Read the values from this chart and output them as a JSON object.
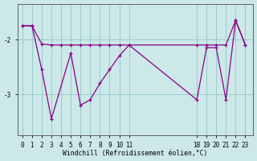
{
  "xlabel": "Windchill (Refroidissement éolien,°C)",
  "bg_color": "#cce8e8",
  "line_color": "#880088",
  "grid_color": "#99cccc",
  "yticks": [
    -2,
    -3
  ],
  "xticks": [
    0,
    1,
    2,
    3,
    4,
    5,
    6,
    7,
    8,
    9,
    10,
    11,
    18,
    19,
    20,
    21,
    22,
    23
  ],
  "xlim": [
    -0.5,
    23.8
  ],
  "ylim": [
    -3.75,
    -1.35
  ],
  "line_a_x": [
    0,
    1,
    2,
    3,
    5,
    6,
    7,
    8,
    9,
    10,
    11,
    18,
    19,
    20,
    21,
    22,
    23
  ],
  "line_a_y": [
    -1.75,
    -1.75,
    -2.55,
    -3.45,
    -2.25,
    -3.2,
    -3.1,
    -2.8,
    -2.55,
    -2.3,
    -2.1,
    -3.1,
    -2.15,
    -2.15,
    -3.1,
    -1.65,
    -2.1
  ],
  "line_b_x": [
    0,
    1,
    2,
    3,
    4,
    5,
    6,
    7,
    8,
    9,
    10,
    11,
    18,
    19,
    20,
    21,
    22,
    23
  ],
  "line_b_y": [
    -1.75,
    -1.75,
    -2.08,
    -2.1,
    -2.1,
    -2.1,
    -2.1,
    -2.1,
    -2.1,
    -2.1,
    -2.1,
    -2.1,
    -2.1,
    -2.1,
    -2.1,
    -2.1,
    -1.65,
    -2.1
  ]
}
